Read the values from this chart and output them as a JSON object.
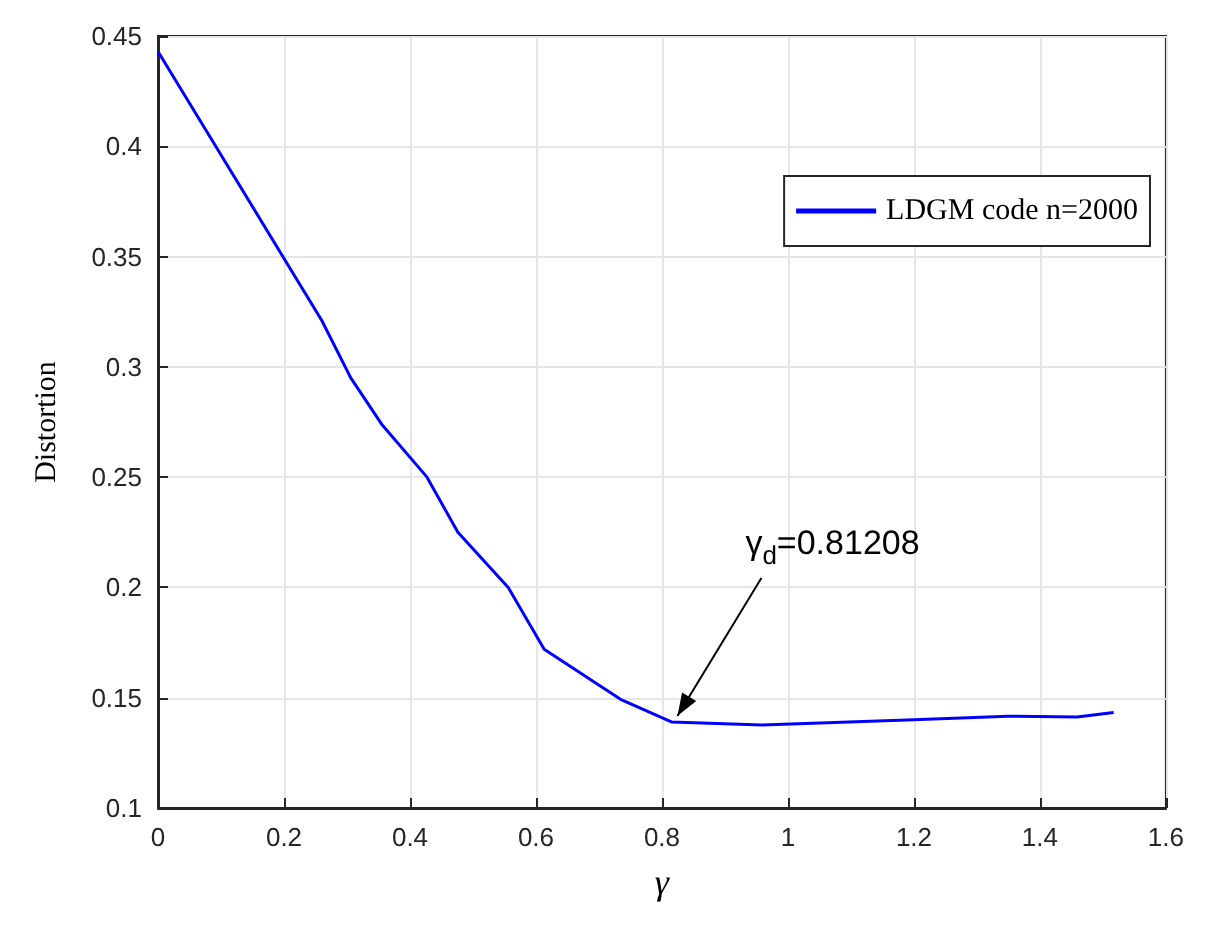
{
  "chart_data": {
    "type": "line",
    "xlabel": "γ",
    "ylabel": "Distortion",
    "series": [
      {
        "name": "LDGM code n=2000",
        "color": "#0000ff",
        "x": [
          0,
          0.26,
          0.306,
          0.355,
          0.427,
          0.476,
          0.556,
          0.613,
          0.736,
          0.815,
          0.959,
          1.2,
          1.349,
          1.459,
          1.517
        ],
        "values": [
          0.443,
          0.321,
          0.295,
          0.274,
          0.25,
          0.225,
          0.2,
          0.172,
          0.149,
          0.139,
          0.1376,
          0.14,
          0.1416,
          0.1413,
          0.1433
        ]
      }
    ],
    "xlim": [
      0,
      1.6
    ],
    "xticks": [
      0,
      0.2,
      0.4,
      0.6,
      0.8,
      1,
      1.2,
      1.4,
      1.6
    ],
    "ylim": [
      0.1,
      0.45
    ],
    "yticks": [
      0.1,
      0.15,
      0.2,
      0.25,
      0.3,
      0.35,
      0.4,
      0.45
    ],
    "grid": true,
    "legend": "top right",
    "marker": "none",
    "line_style": "solid",
    "annotations": [
      {
        "text": "γ$_{d}$=0.81208",
        "x": 0.815,
        "y": 0.139
      }
    ]
  }
}
